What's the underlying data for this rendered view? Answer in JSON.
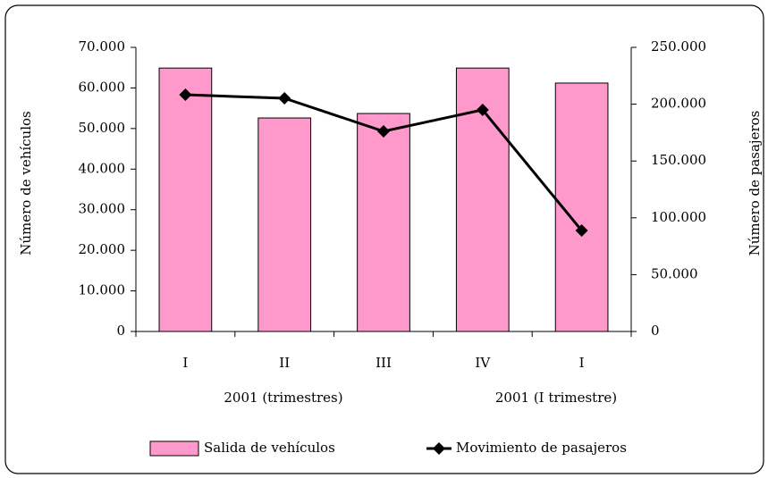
{
  "chart_data": {
    "type": "bar-line",
    "categories": [
      "I",
      "II",
      "III",
      "IV",
      "I"
    ],
    "group_labels": [
      "2001 (trimestres)",
      "2001 (I trimestre)"
    ],
    "y_label": "Número de vehículos",
    "y2_label": "Número de pasajeros",
    "series": [
      {
        "name": "Salida de vehículos",
        "type": "bar",
        "axis": "y",
        "color": "#ff99cc",
        "values": [
          64900,
          52600,
          53700,
          64900,
          61200
        ]
      },
      {
        "name": "Movimiento de pasajeros",
        "type": "line",
        "axis": "y2",
        "color": "#000000",
        "values": [
          208300,
          205200,
          176100,
          195000,
          88800
        ]
      }
    ],
    "ylim": [
      0,
      70000
    ],
    "yticks": [
      0,
      {
        "value": 10000,
        "label": "10.000"
      },
      {
        "value": 20000,
        "label": "20.000"
      },
      {
        "value": 30000,
        "label": "30.000"
      },
      {
        "value": 40000,
        "label": "40.000"
      },
      {
        "value": 50000,
        "label": "50.000"
      },
      {
        "value": 60000,
        "label": "60.000"
      },
      {
        "value": 70000,
        "label": "70.000"
      }
    ],
    "y2lim": [
      0,
      250000
    ],
    "y2ticks": [
      0,
      {
        "value": 50000,
        "label": "50.000"
      },
      {
        "value": 100000,
        "label": "100.000"
      },
      {
        "value": 150000,
        "label": "150.000"
      },
      {
        "value": 200000,
        "label": "200.000"
      },
      {
        "value": 250000,
        "label": "250.000"
      }
    ],
    "grid": false,
    "legend": "bottom"
  }
}
